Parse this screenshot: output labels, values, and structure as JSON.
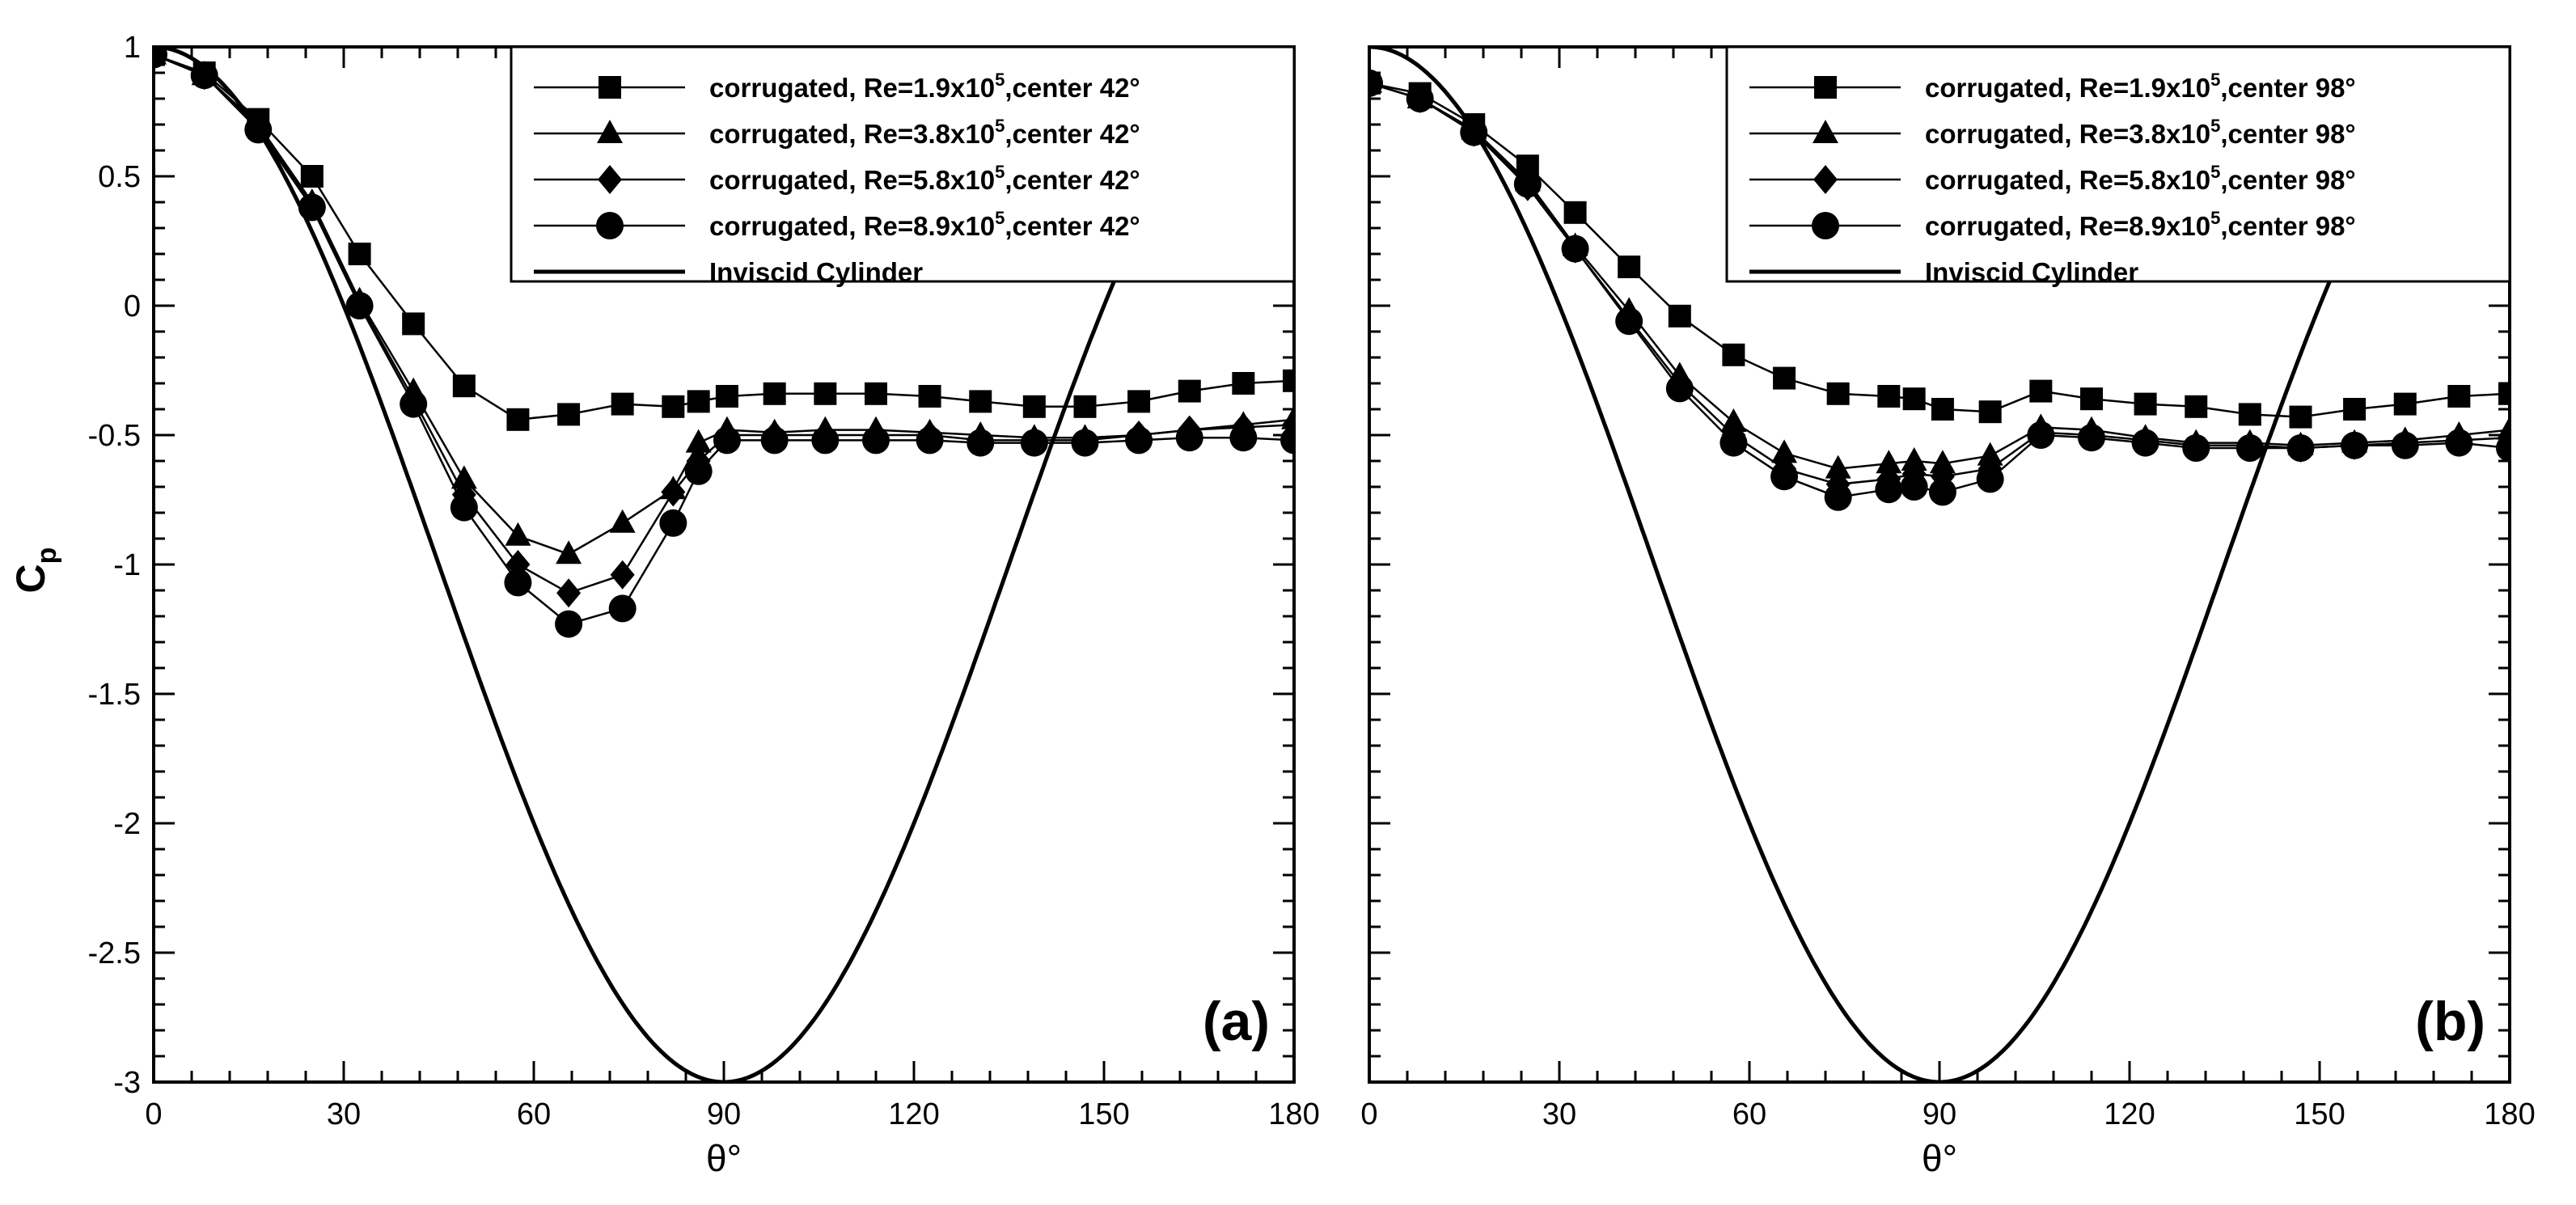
{
  "chart_data": [
    {
      "type": "line",
      "panel_label": "(a)",
      "xlabel": "θ°",
      "ylabel": "C",
      "ylabel_sub": "p",
      "xlim": [
        0,
        180
      ],
      "ylim": [
        -3,
        1
      ],
      "xticks": [
        "0",
        "30",
        "60",
        "90",
        "120",
        "150",
        "180"
      ],
      "yticks": [
        "1",
        "0.5",
        "0",
        "-0.5",
        "-1",
        "-1.5",
        "-2",
        "-2.5",
        "-3"
      ],
      "legend_position": "top-right",
      "series": [
        {
          "name": "corrugated, Re=1.9x10⁵,center 42°",
          "label_pre": "corrugated, Re=1.9x10",
          "label_sup": "5",
          "label_post": ",center 42°",
          "marker": "square",
          "x": [
            0,
            8,
            16.5,
            25,
            32.5,
            41,
            49,
            57.5,
            65.5,
            74,
            82,
            86,
            90.5,
            98,
            106,
            114,
            122.5,
            130.5,
            139,
            147,
            155.5,
            163.5,
            172,
            180
          ],
          "y": [
            0.97,
            0.9,
            0.72,
            0.5,
            0.2,
            -0.07,
            -0.31,
            -0.44,
            -0.42,
            -0.38,
            -0.39,
            -0.37,
            -0.35,
            -0.34,
            -0.34,
            -0.34,
            -0.35,
            -0.37,
            -0.39,
            -0.39,
            -0.37,
            -0.33,
            -0.3,
            -0.29
          ]
        },
        {
          "name": "corrugated, Re=3.8x10⁵,center 42°",
          "label_pre": "corrugated, Re=3.8x10",
          "label_sup": "5",
          "label_post": ",center 42°",
          "marker": "triangle",
          "x": [
            0,
            8,
            16.5,
            25,
            32.5,
            41,
            49,
            57.5,
            65.5,
            74,
            82,
            86,
            90.5,
            98,
            106,
            114,
            122.5,
            130.5,
            139,
            147,
            155.5,
            163.5,
            172,
            180
          ],
          "y": [
            0.97,
            0.89,
            0.7,
            0.4,
            0.02,
            -0.33,
            -0.67,
            -0.89,
            -0.96,
            -0.84,
            -0.71,
            -0.53,
            -0.48,
            -0.49,
            -0.48,
            -0.48,
            -0.49,
            -0.5,
            -0.51,
            -0.51,
            -0.5,
            -0.48,
            -0.46,
            -0.44
          ]
        },
        {
          "name": "corrugated, Re=5.8x10⁵,center 42°",
          "label_pre": "corrugated, Re=5.8x10",
          "label_sup": "5",
          "label_post": ",center 42°",
          "marker": "diamond",
          "x": [
            0,
            8,
            16.5,
            25,
            32.5,
            41,
            49,
            57.5,
            65.5,
            74,
            82,
            86,
            90.5,
            98,
            106,
            114,
            122.5,
            130.5,
            139,
            147,
            155.5,
            163.5,
            172,
            180
          ],
          "y": [
            0.97,
            0.89,
            0.69,
            0.39,
            0.01,
            -0.36,
            -0.73,
            -1.0,
            -1.11,
            -1.04,
            -0.72,
            -0.6,
            -0.5,
            -0.5,
            -0.5,
            -0.5,
            -0.5,
            -0.52,
            -0.52,
            -0.52,
            -0.5,
            -0.48,
            -0.47,
            -0.46
          ]
        },
        {
          "name": "corrugated, Re=8.9x10⁵,center 42°",
          "label_pre": "corrugated, Re=8.9x10",
          "label_sup": "5",
          "label_post": ",center 42°",
          "marker": "circle",
          "x": [
            0,
            8,
            16.5,
            25,
            32.5,
            41,
            49,
            57.5,
            65.5,
            74,
            82,
            86,
            90.5,
            98,
            106,
            114,
            122.5,
            130.5,
            139,
            147,
            155.5,
            163.5,
            172,
            180
          ],
          "y": [
            0.97,
            0.89,
            0.68,
            0.38,
            0.0,
            -0.38,
            -0.78,
            -1.07,
            -1.23,
            -1.17,
            -0.84,
            -0.64,
            -0.52,
            -0.52,
            -0.52,
            -0.52,
            -0.52,
            -0.53,
            -0.53,
            -0.53,
            -0.52,
            -0.51,
            -0.51,
            -0.52
          ]
        },
        {
          "name": "Inviscid Cylinder",
          "marker": "none",
          "function": "1 - 4 sin²θ"
        }
      ]
    },
    {
      "type": "line",
      "panel_label": "(b)",
      "xlabel": "θ°",
      "xlim": [
        0,
        180
      ],
      "ylim": [
        -3,
        1
      ],
      "xticks": [
        "0",
        "30",
        "60",
        "90",
        "120",
        "150",
        "180"
      ],
      "legend_position": "top-right",
      "series": [
        {
          "name": "corrugated, Re=1.9x10⁵,center 98°",
          "label_pre": "corrugated, Re=1.9x10",
          "label_sup": "5",
          "label_post": ",center 98°",
          "marker": "square",
          "x": [
            0,
            8,
            16.5,
            25,
            32.5,
            41,
            49,
            57.5,
            65.5,
            74,
            82,
            86,
            90.5,
            98,
            106,
            114,
            122.5,
            130.5,
            139,
            147,
            155.5,
            163.5,
            172,
            180
          ],
          "y": [
            0.86,
            0.82,
            0.7,
            0.54,
            0.36,
            0.15,
            -0.04,
            -0.19,
            -0.28,
            -0.34,
            -0.35,
            -0.36,
            -0.4,
            -0.41,
            -0.33,
            -0.36,
            -0.38,
            -0.39,
            -0.42,
            -0.43,
            -0.4,
            -0.38,
            -0.35,
            -0.34
          ]
        },
        {
          "name": "corrugated, Re=3.8x10⁵,center 98°",
          "label_pre": "corrugated, Re=3.8x10",
          "label_sup": "5",
          "label_post": ",center 98°",
          "marker": "triangle",
          "x": [
            0,
            8,
            16.5,
            25,
            32.5,
            41,
            49,
            57.5,
            65.5,
            74,
            82,
            86,
            90.5,
            98,
            106,
            114,
            122.5,
            130.5,
            139,
            147,
            155.5,
            163.5,
            172,
            180
          ],
          "y": [
            0.86,
            0.8,
            0.68,
            0.48,
            0.23,
            -0.02,
            -0.27,
            -0.45,
            -0.57,
            -0.63,
            -0.61,
            -0.6,
            -0.61,
            -0.58,
            -0.47,
            -0.48,
            -0.51,
            -0.53,
            -0.53,
            -0.54,
            -0.53,
            -0.52,
            -0.5,
            -0.48
          ]
        },
        {
          "name": "corrugated, Re=5.8x10⁵,center 98°",
          "label_pre": "corrugated, Re=5.8x10",
          "label_sup": "5",
          "label_post": ",center 98°",
          "marker": "diamond",
          "x": [
            0,
            8,
            16.5,
            25,
            32.5,
            41,
            49,
            57.5,
            65.5,
            74,
            82,
            86,
            90.5,
            98,
            106,
            114,
            122.5,
            130.5,
            139,
            147,
            155.5,
            163.5,
            172,
            180
          ],
          "y": [
            0.86,
            0.8,
            0.67,
            0.46,
            0.22,
            -0.05,
            -0.3,
            -0.5,
            -0.63,
            -0.69,
            -0.67,
            -0.65,
            -0.66,
            -0.63,
            -0.49,
            -0.5,
            -0.52,
            -0.54,
            -0.54,
            -0.55,
            -0.54,
            -0.53,
            -0.52,
            -0.51
          ]
        },
        {
          "name": "corrugated, Re=8.9x10⁵,center 98°",
          "label_pre": "corrugated, Re=8.9x10",
          "label_sup": "5",
          "label_post": ",center 98°",
          "marker": "circle",
          "x": [
            0,
            8,
            16.5,
            25,
            32.5,
            41,
            49,
            57.5,
            65.5,
            74,
            82,
            86,
            90.5,
            98,
            106,
            114,
            122.5,
            130.5,
            139,
            147,
            155.5,
            163.5,
            172,
            180
          ],
          "y": [
            0.86,
            0.8,
            0.67,
            0.47,
            0.22,
            -0.06,
            -0.32,
            -0.53,
            -0.66,
            -0.74,
            -0.71,
            -0.7,
            -0.72,
            -0.67,
            -0.5,
            -0.51,
            -0.53,
            -0.55,
            -0.55,
            -0.55,
            -0.54,
            -0.54,
            -0.53,
            -0.55
          ]
        },
        {
          "name": "Inviscid Cylinder",
          "marker": "none",
          "function": "1 - 4 sin²θ"
        }
      ]
    }
  ]
}
